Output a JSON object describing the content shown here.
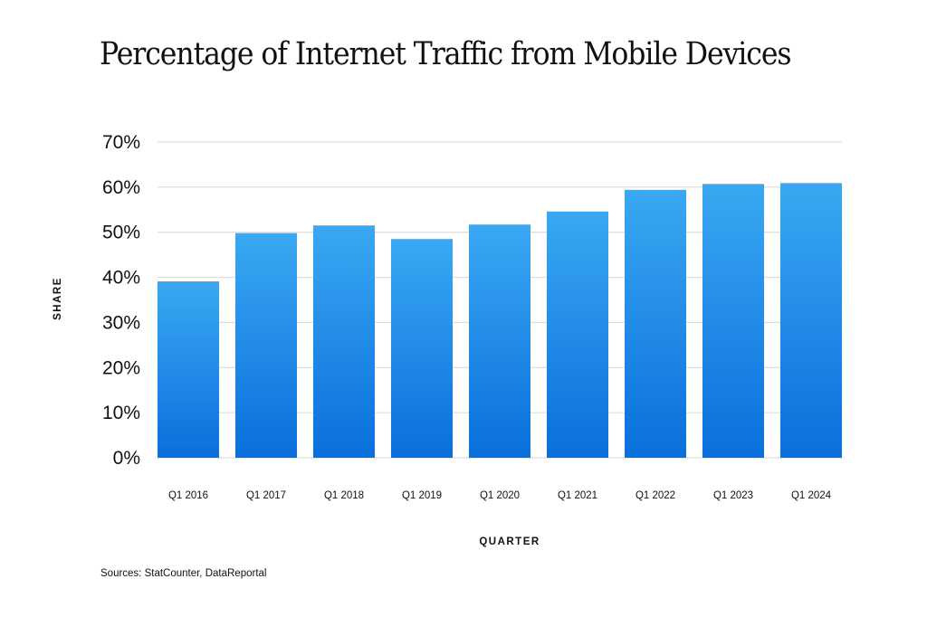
{
  "chart_data": {
    "type": "bar",
    "title": "Percentage of Internet Traffic from Mobile Devices",
    "xlabel": "QUARTER",
    "ylabel": "SHARE",
    "categories": [
      "Q1 2016",
      "Q1 2017",
      "Q1 2018",
      "Q1 2019",
      "Q1 2020",
      "Q1 2021",
      "Q1 2022",
      "Q1 2023",
      "Q1 2024"
    ],
    "values": [
      39.1,
      49.8,
      51.5,
      48.5,
      51.7,
      54.6,
      59.4,
      60.7,
      60.9
    ],
    "unit": "%",
    "ylim": [
      0,
      70
    ],
    "yticks": [
      "0%",
      "10%",
      "20%",
      "30%",
      "40%",
      "50%",
      "60%",
      "70%"
    ],
    "grid": true,
    "legend": "none",
    "source": "Sources: StatCounter, DataReportal",
    "colors": {
      "bar_top": "#3aa8f2",
      "bar_bottom": "#0a6fdc",
      "grid": "#d6d6d6"
    }
  }
}
